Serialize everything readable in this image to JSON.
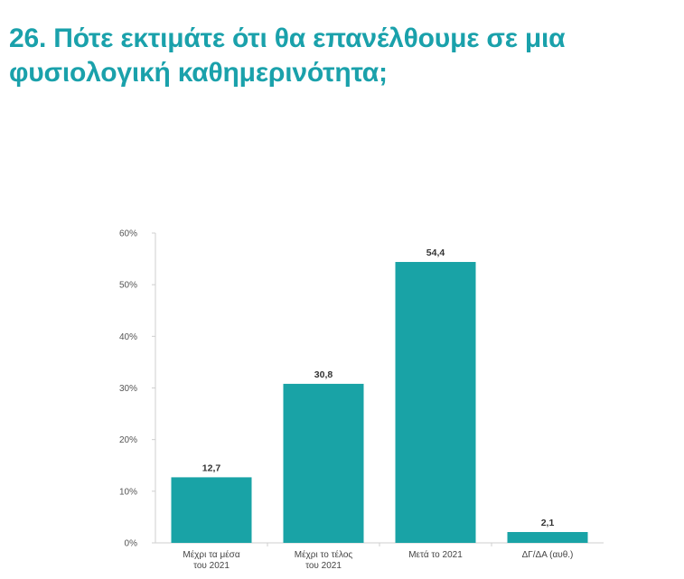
{
  "title": "26. Πότε εκτιμάτε ότι θα επανέλθουμε σε μια φυσιολογική καθημερινότητα;",
  "chart_data": {
    "type": "bar",
    "categories": [
      [
        "Μέχρι τα μέσα",
        "του 2021"
      ],
      [
        "Μέχρι το τέλος",
        "του 2021"
      ],
      [
        "Μετά το 2021"
      ],
      [
        "ΔΓ/ΔΑ (αυθ.)"
      ]
    ],
    "values": [
      12.7,
      30.8,
      54.4,
      2.1
    ],
    "value_labels": [
      "12,7",
      "30,8",
      "54,4",
      "2,1"
    ],
    "y_ticks": [
      "0%",
      "10%",
      "20%",
      "30%",
      "40%",
      "50%",
      "60%"
    ],
    "ylim": [
      0,
      60
    ],
    "grid": false,
    "bar_color": "#19a3a6",
    "xlabel": "",
    "ylabel": ""
  }
}
